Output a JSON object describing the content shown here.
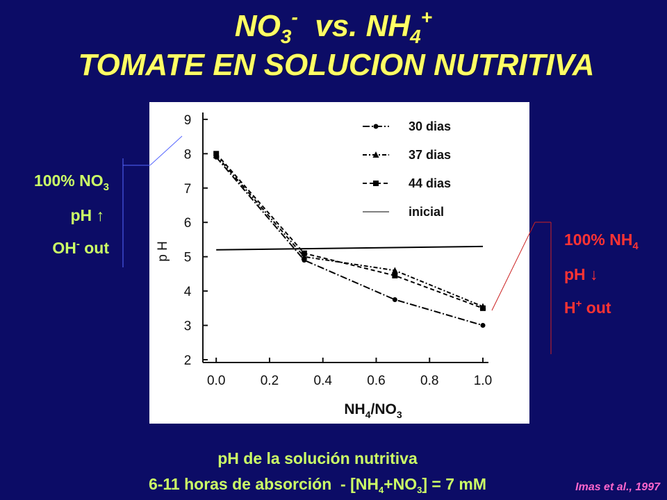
{
  "title": {
    "line1": [
      "NO",
      "3",
      "-",
      "  vs. NH",
      "4",
      "+"
    ],
    "line2": "TOMATE EN SOLUCION NUTRITIVA"
  },
  "chart_data": {
    "type": "line",
    "y_label": "p H",
    "x_label": [
      "NH",
      "4",
      "/NO",
      "3"
    ],
    "xlim": [
      -0.05,
      1.0
    ],
    "ylim": [
      2,
      9.2
    ],
    "xticks": [
      {
        "value": 0,
        "label": "0.0"
      },
      {
        "value": 0.2,
        "label": "0.2"
      },
      {
        "value": 0.4,
        "label": "0.4"
      },
      {
        "value": 0.6,
        "label": "0.6"
      },
      {
        "value": 0.8,
        "label": "0.8"
      },
      {
        "value": 1.0,
        "label": "1.0"
      }
    ],
    "yticks": [
      2,
      3,
      4,
      5,
      6,
      7,
      8,
      9
    ],
    "series": [
      {
        "name": "30 dias",
        "color": "#000000",
        "dash": "10 3 2 3",
        "marker": "circle",
        "x": [
          0,
          0.33,
          0.67,
          1.0
        ],
        "values": [
          7.9,
          4.9,
          3.75,
          3.0
        ]
      },
      {
        "name": "37 dias",
        "color": "#000000",
        "dash": "6 3 2 3",
        "marker": "triangle",
        "x": [
          0,
          0.33,
          0.67,
          1.0
        ],
        "values": [
          7.95,
          5.0,
          4.6,
          3.55
        ]
      },
      {
        "name": "44 dias",
        "color": "#000000",
        "dash": "6 4",
        "marker": "square",
        "x": [
          0,
          0.33,
          0.67,
          1.0
        ],
        "values": [
          8.0,
          5.1,
          4.45,
          3.5
        ]
      },
      {
        "name": "inicial",
        "color": "#000000",
        "dash": "none",
        "marker": "none",
        "x": [
          0,
          1.0
        ],
        "values": [
          5.2,
          5.3
        ]
      }
    ]
  },
  "left_note": {
    "line1": [
      "100% NO",
      "3"
    ],
    "line2": "pH ↑",
    "line3": [
      "OH",
      "-",
      " out"
    ]
  },
  "right_note": {
    "line1": [
      "100% NH",
      "4"
    ],
    "line2": "pH ↓",
    "line3": [
      "H",
      "+",
      " out"
    ]
  },
  "caption": {
    "line1": "pH de la solución nutritiva",
    "line2": [
      "6-11 horas de absorción  - [NH",
      "4",
      "+NO",
      "3",
      "] = 7 mM"
    ]
  },
  "citation": "Imas et al., 1997"
}
